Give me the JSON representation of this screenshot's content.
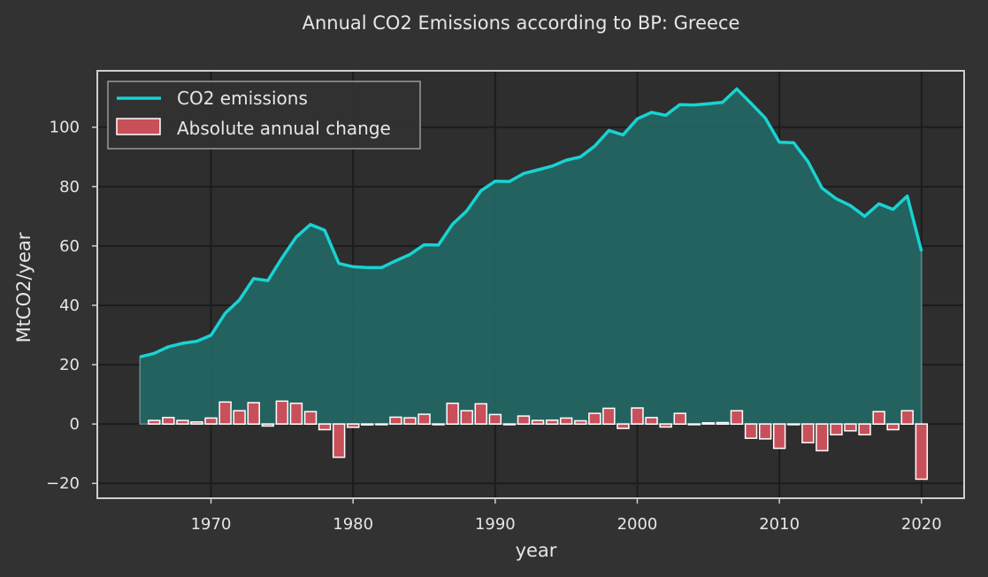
{
  "chart_data": {
    "type": "line",
    "title": "Annual CO2 Emissions according to BP: Greece",
    "xlabel": "year",
    "ylabel": "MtCO2/year",
    "xlim": [
      1962,
      2023
    ],
    "ylim": [
      -25,
      119
    ],
    "xticks": [
      1970,
      1980,
      1990,
      2000,
      2010,
      2020
    ],
    "yticks": [
      -20,
      0,
      20,
      40,
      60,
      80,
      100
    ],
    "grid": true,
    "legend_position": "top-left",
    "colors": {
      "background": "#323232",
      "plot_background": "#2e2e2e",
      "grid": "#1c1c1c",
      "frame": "#cfcfcf",
      "line": "#18d3d3",
      "area_fill": "#236866",
      "bar_fill": "#c8505a",
      "bar_edge": "#ffffff",
      "text": "#e6e6e6"
    },
    "series": [
      {
        "name": "CO2 emissions",
        "kind": "line-with-area",
        "x": [
          1965,
          1966,
          1967,
          1968,
          1969,
          1970,
          1971,
          1972,
          1973,
          1974,
          1975,
          1976,
          1977,
          1978,
          1979,
          1980,
          1981,
          1982,
          1983,
          1984,
          1985,
          1986,
          1987,
          1988,
          1989,
          1990,
          1991,
          1992,
          1993,
          1994,
          1995,
          1996,
          1997,
          1998,
          1999,
          2000,
          2001,
          2002,
          2003,
          2004,
          2005,
          2006,
          2007,
          2008,
          2009,
          2010,
          2011,
          2012,
          2013,
          2014,
          2015,
          2016,
          2017,
          2018,
          2019,
          2020
        ],
        "values": [
          22.6,
          23.8,
          26.0,
          27.2,
          27.9,
          29.9,
          37.3,
          41.8,
          49.0,
          48.3,
          56.0,
          63.0,
          67.2,
          65.3,
          54.1,
          53.0,
          52.7,
          52.7,
          55.0,
          57.1,
          60.4,
          60.3,
          67.3,
          71.8,
          78.6,
          81.8,
          81.7,
          84.4,
          85.6,
          86.9,
          88.9,
          90.0,
          93.6,
          98.9,
          97.4,
          102.8,
          105.0,
          104.0,
          107.6,
          107.5,
          107.9,
          108.4,
          112.9,
          108.1,
          103.1,
          94.9,
          94.8,
          88.5,
          79.5,
          75.9,
          73.6,
          70.0,
          74.2,
          72.3,
          76.8,
          58.2
        ]
      },
      {
        "name": "Absolute annual change",
        "kind": "bar",
        "x": [
          1966,
          1967,
          1968,
          1969,
          1970,
          1971,
          1972,
          1973,
          1974,
          1975,
          1976,
          1977,
          1978,
          1979,
          1980,
          1981,
          1982,
          1983,
          1984,
          1985,
          1986,
          1987,
          1988,
          1989,
          1990,
          1991,
          1992,
          1993,
          1994,
          1995,
          1996,
          1997,
          1998,
          1999,
          2000,
          2001,
          2002,
          2003,
          2004,
          2005,
          2006,
          2007,
          2008,
          2009,
          2010,
          2011,
          2012,
          2013,
          2014,
          2015,
          2016,
          2017,
          2018,
          2019,
          2020
        ],
        "values": [
          1.2,
          2.2,
          1.2,
          0.7,
          2.0,
          7.4,
          4.5,
          7.2,
          -0.7,
          7.7,
          7.0,
          4.2,
          -1.9,
          -11.2,
          -1.1,
          -0.3,
          0.0,
          2.3,
          2.1,
          3.3,
          -0.1,
          7.0,
          4.5,
          6.8,
          3.2,
          -0.1,
          2.7,
          1.2,
          1.3,
          2.0,
          1.1,
          3.6,
          5.3,
          -1.5,
          5.4,
          2.2,
          -1.0,
          3.6,
          -0.1,
          0.4,
          0.5,
          4.5,
          -4.8,
          -5.0,
          -8.2,
          -0.1,
          -6.3,
          -9.0,
          -3.6,
          -2.3,
          -3.6,
          4.2,
          -1.9,
          4.5,
          -18.6
        ]
      }
    ]
  }
}
